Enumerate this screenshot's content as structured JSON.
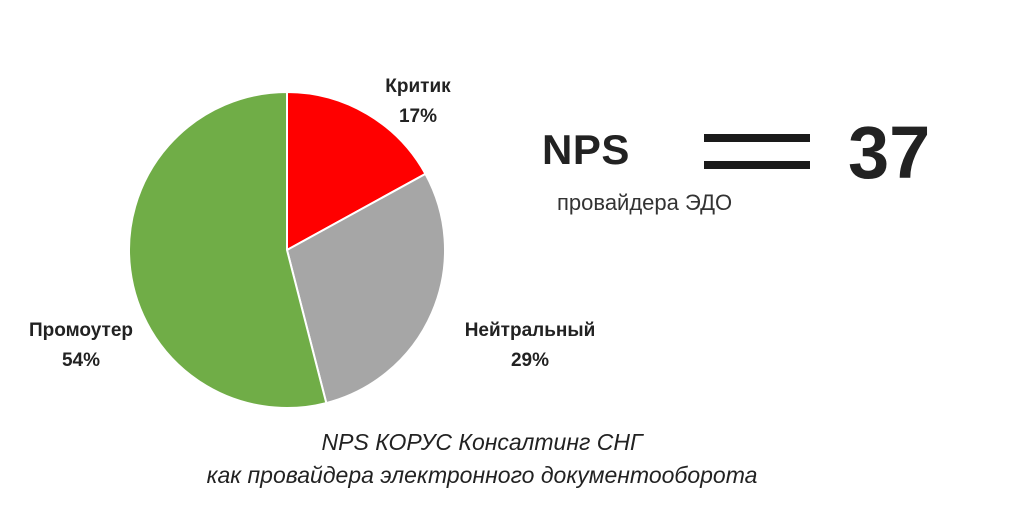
{
  "chart_data": {
    "type": "pie",
    "categories": [
      "Критик",
      "Нейтральный",
      "Промоутер"
    ],
    "values": [
      17,
      29,
      54
    ],
    "value_labels": [
      "17%",
      "29%",
      "54%"
    ],
    "unit": "%",
    "colors": [
      "#ff0000",
      "#a6a6a6",
      "#70ad47"
    ],
    "start_angle": "12 o'clock",
    "direction": "clockwise"
  },
  "summary": {
    "metric": "NPS",
    "subtitle": "провайдера ЭДО",
    "value": "37"
  },
  "caption": {
    "line1": "NPS КОРУС Консалтинг СНГ",
    "line2": "как провайдера электронного документооборота"
  }
}
